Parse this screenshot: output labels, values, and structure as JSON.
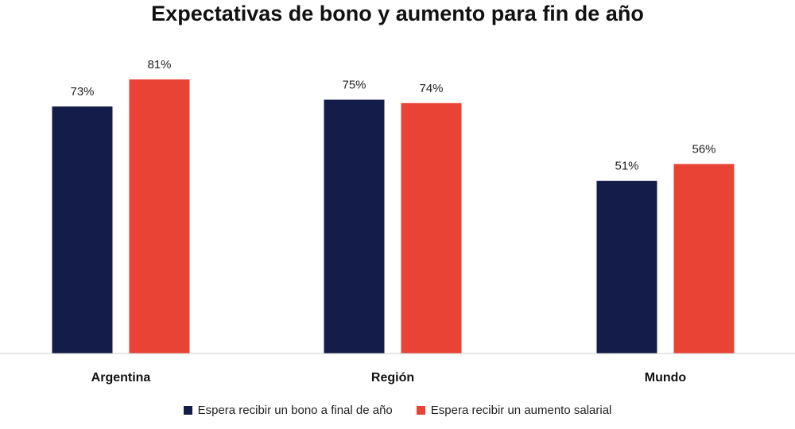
{
  "chart_data": {
    "type": "bar",
    "title": "Expectativas de bono y aumento para fin de año",
    "categories": [
      "Argentina",
      "Región",
      "Mundo"
    ],
    "series": [
      {
        "name": "Espera recibir un bono a final de año",
        "values": [
          73,
          75,
          51
        ],
        "labels": [
          "73%",
          "75%",
          "51%"
        ],
        "color": "#141c4a"
      },
      {
        "name": "Espera recibir un aumento salarial",
        "values": [
          81,
          74,
          56
        ],
        "labels": [
          "81%",
          "74%",
          "56%"
        ],
        "color": "#e84335"
      }
    ],
    "ylim": [
      0,
      100
    ],
    "grid": false,
    "legend_position": "bottom"
  }
}
